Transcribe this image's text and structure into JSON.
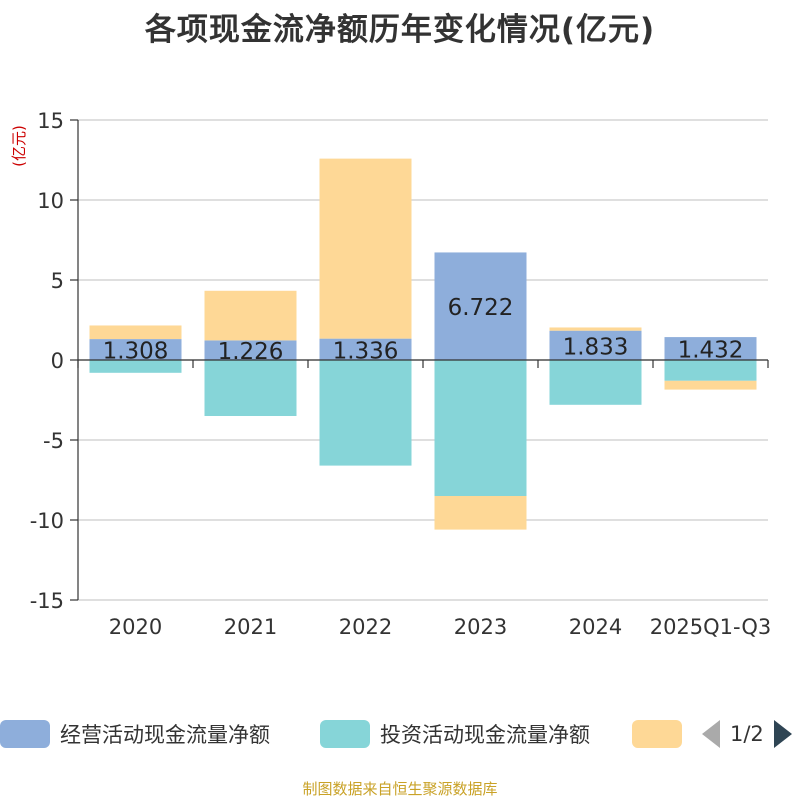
{
  "chart_data": {
    "type": "bar",
    "stacked": true,
    "title": "各项现金流净额历年变化情况(亿元)",
    "unit_label": "(亿元)",
    "categories": [
      "2020",
      "2021",
      "2022",
      "2023",
      "2024",
      "2025Q1-Q3"
    ],
    "ylim": [
      -15,
      15
    ],
    "yticks": [
      15,
      10,
      5,
      0,
      -5,
      -10,
      -15
    ],
    "grid": true,
    "legend_position": "bottom",
    "series": [
      {
        "name": "经营活动现金流量净额",
        "color": "#8eaedb",
        "values": [
          1.308,
          1.226,
          1.336,
          6.722,
          1.833,
          1.432
        ],
        "show_labels": true
      },
      {
        "name": "投资活动现金流量净额",
        "color": "#86d5d8",
        "values": [
          -0.8,
          -3.5,
          -6.6,
          -8.5,
          -2.8,
          -1.3
        ],
        "show_labels": false
      },
      {
        "name": "",
        "color": "#fed896",
        "values": [
          0.85,
          3.1,
          11.25,
          -2.1,
          0.2,
          -0.55
        ],
        "show_labels": false
      }
    ]
  },
  "legend": {
    "items": [
      {
        "label": "经营活动现金流量净额",
        "color": "#8eaedb"
      },
      {
        "label": "投资活动现金流量净额",
        "color": "#86d5d8"
      },
      {
        "label": "",
        "color": "#fed896"
      }
    ],
    "page_text": "1/2"
  },
  "source_note": "制图数据来自恒生聚源数据库"
}
